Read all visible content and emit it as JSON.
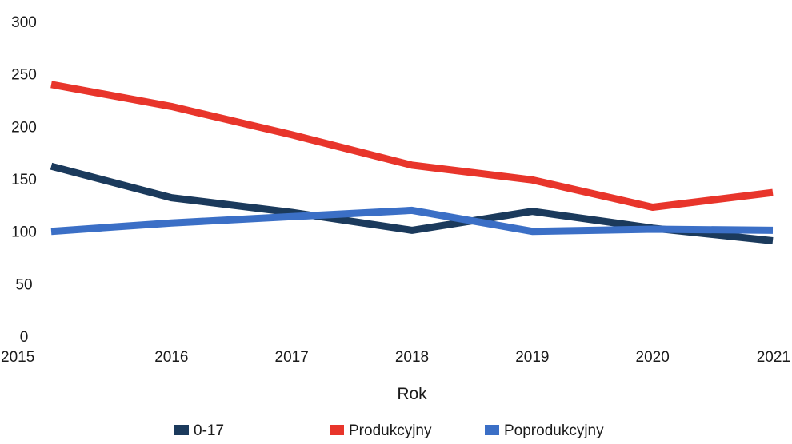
{
  "chart_data": {
    "type": "line",
    "title": "",
    "xlabel": "Rok",
    "ylabel": "",
    "x": [
      2015,
      2016,
      2017,
      2018,
      2019,
      2020,
      2021
    ],
    "ylim": [
      0,
      300
    ],
    "yticks": [
      0,
      50,
      100,
      150,
      200,
      250,
      300
    ],
    "grid": false,
    "legend": "bottom",
    "series": [
      {
        "name": "0-17",
        "color": "#1b3a5c",
        "values": [
          162,
          132,
          118,
          101,
          119,
          103,
          91
        ]
      },
      {
        "name": "Produkcyjny",
        "color": "#e8352b",
        "values": [
          240,
          219,
          192,
          163,
          149,
          123,
          137
        ]
      },
      {
        "name": "Poprodukcyjny",
        "color": "#3b6fc6",
        "values": [
          100,
          108,
          114,
          120,
          100,
          102,
          101
        ]
      }
    ]
  }
}
